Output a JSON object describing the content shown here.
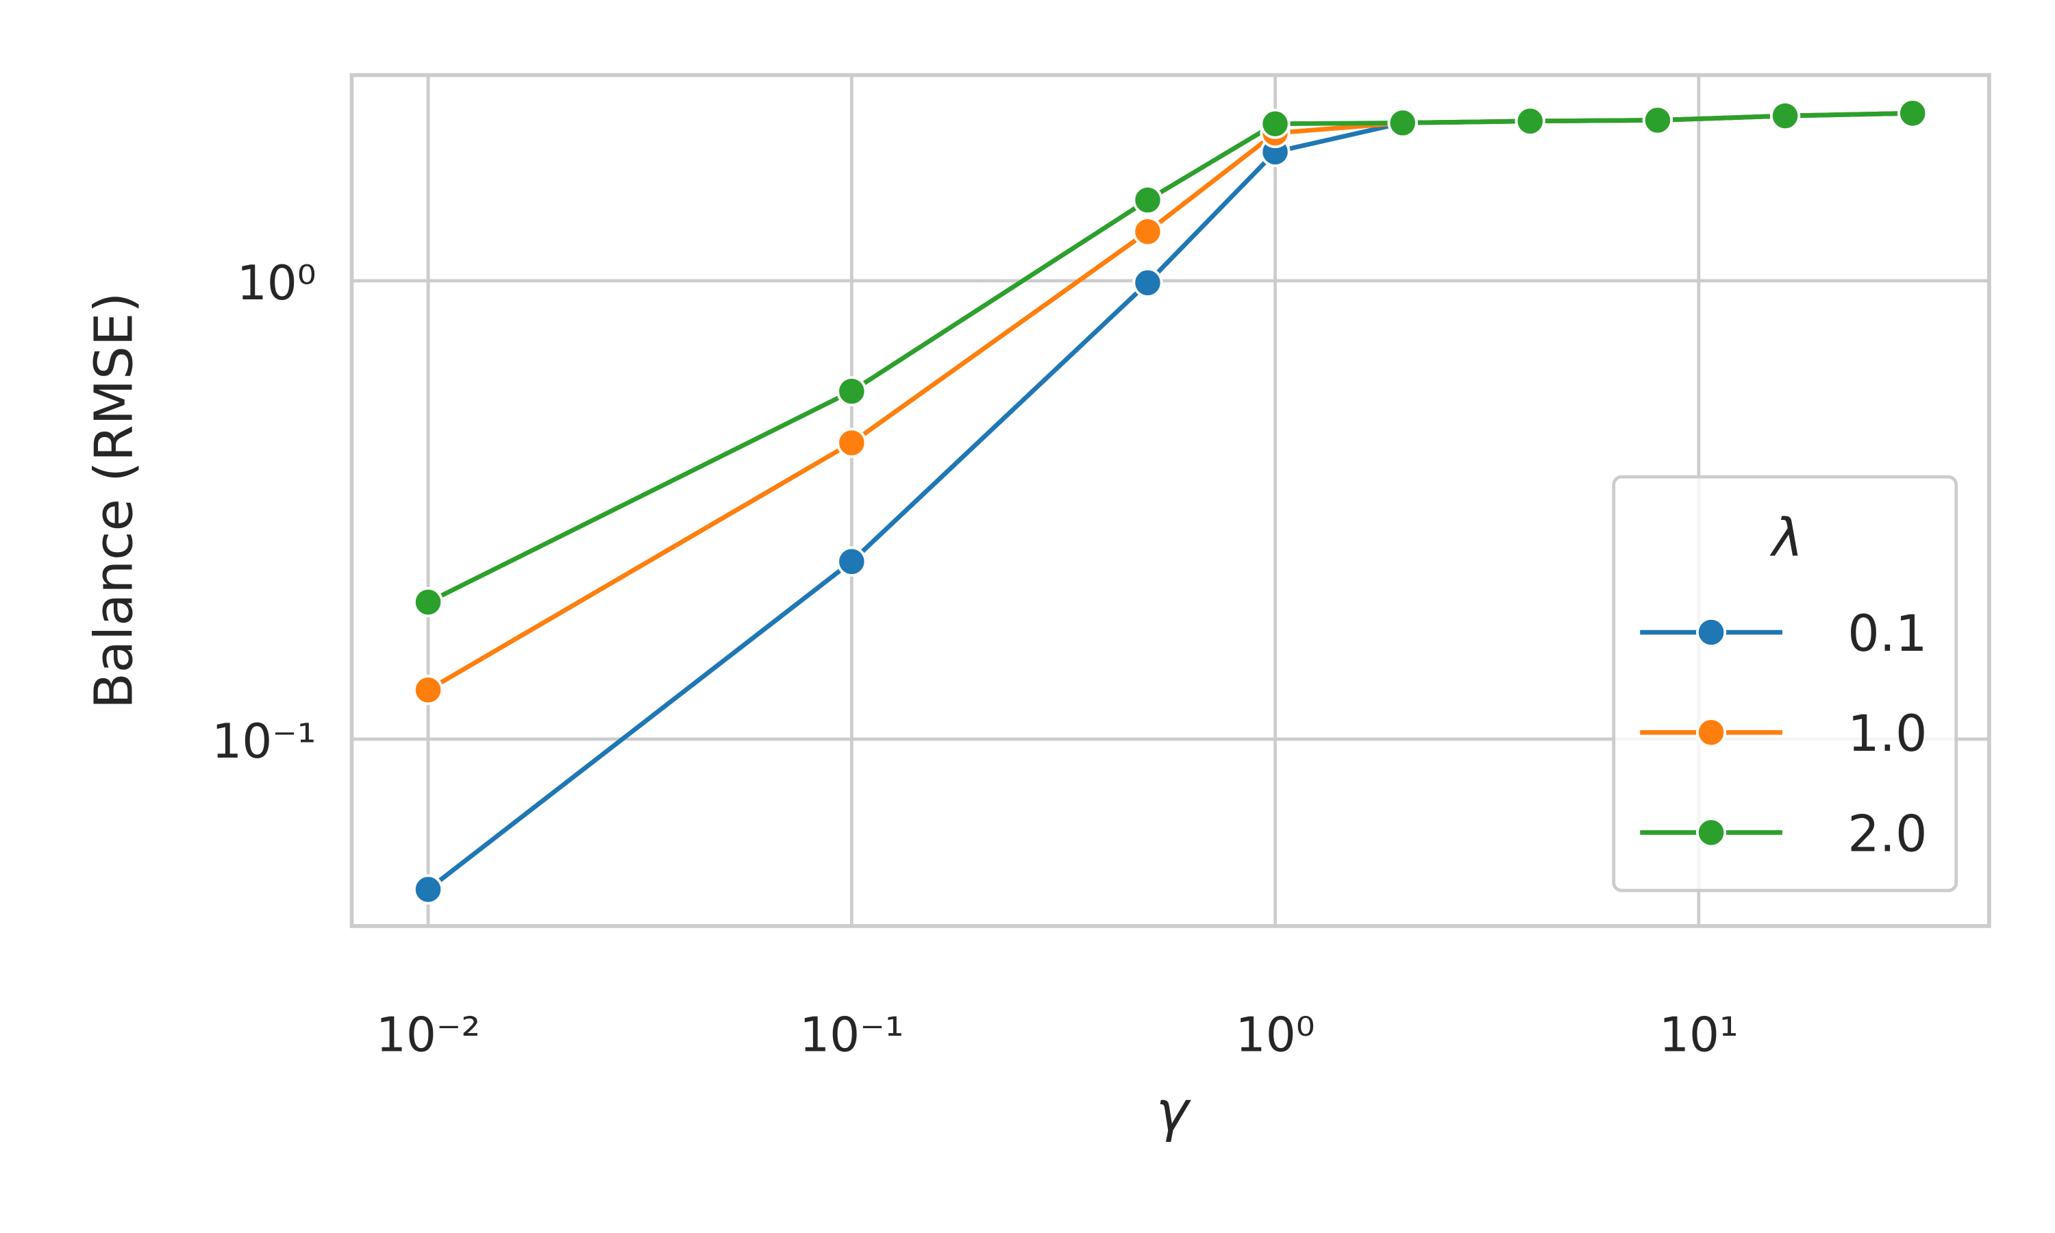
{
  "chart_data": {
    "type": "line",
    "x_label": "γ",
    "y_label": "Balance (RMSE)",
    "x_log": true,
    "y_log": true,
    "grid": true,
    "x": [
      0.01,
      0.1,
      0.5,
      1,
      2,
      4,
      8,
      16,
      32
    ],
    "series": [
      {
        "name": "0.1",
        "color": "#1f77b4",
        "values": [
          0.047,
          0.244,
          0.99,
          1.91,
          2.21,
          2.23,
          2.24,
          2.29,
          2.32
        ]
      },
      {
        "name": "1.0",
        "color": "#ff7f0e",
        "values": [
          0.128,
          0.443,
          1.28,
          2.1,
          2.21,
          2.23,
          2.24,
          2.29,
          2.32
        ]
      },
      {
        "name": "2.0",
        "color": "#2ca02c",
        "values": [
          0.199,
          0.574,
          1.5,
          2.2,
          2.21,
          2.23,
          2.24,
          2.29,
          2.32
        ]
      }
    ],
    "legend_title": "λ",
    "legend_position": "lower right",
    "xlim": [
      0.0066,
      48.5
    ],
    "ylim": [
      0.0391,
      2.81
    ],
    "xticks": [
      {
        "value": 0.01,
        "label": "10⁻²"
      },
      {
        "value": 0.1,
        "label": "10⁻¹"
      },
      {
        "value": 1,
        "label": "10⁰"
      },
      {
        "value": 10,
        "label": "10¹"
      }
    ],
    "yticks": [
      {
        "value": 0.1,
        "label": "10⁻¹"
      },
      {
        "value": 1,
        "label": "10⁰"
      }
    ]
  }
}
